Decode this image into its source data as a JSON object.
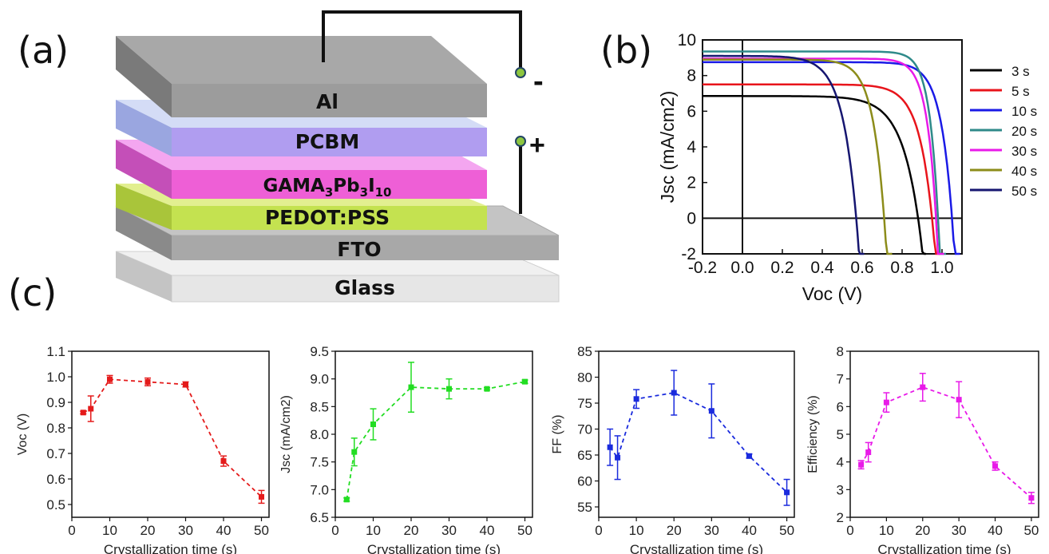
{
  "panels": {
    "a": "(a)",
    "b": "(b)",
    "c": "(c)"
  },
  "device": {
    "layers": [
      "Al",
      "PCBM",
      "GAMA3Pb3I10",
      "PEDOT:PSS",
      "FTO",
      "Glass"
    ],
    "absorber": {
      "base": "GAMA",
      "s1": "3",
      "mid": "Pb",
      "s2": "3",
      "mid2": "I",
      "s3": "10"
    },
    "terminals": {
      "negative": "-",
      "positive": "+"
    }
  },
  "chart_data": [
    {
      "type": "line",
      "id": "b",
      "xlabel": "Voc (V)",
      "ylabel": "Jsc (mA/cm2)",
      "xlim": [
        -0.2,
        1.1
      ],
      "ylim": [
        -2,
        10
      ],
      "xticks": [
        "-0.2",
        "0.0",
        "0.2",
        "0.4",
        "0.6",
        "0.8",
        "1.0"
      ],
      "yticks": [
        "-2",
        "0",
        "2",
        "4",
        "6",
        "8",
        "10"
      ],
      "legend_position": "right",
      "series": [
        {
          "name": "3 s",
          "color": "#000000",
          "jsc": 6.85,
          "voc": 0.88,
          "n": 10
        },
        {
          "name": "5 s",
          "color": "#e8141b",
          "jsc": 7.5,
          "voc": 0.95,
          "n": 14
        },
        {
          "name": "10 s",
          "color": "#1a1ae6",
          "jsc": 8.75,
          "voc": 1.05,
          "n": 18
        },
        {
          "name": "20 s",
          "color": "#2f8a8a",
          "jsc": 9.35,
          "voc": 0.98,
          "n": 22
        },
        {
          "name": "30 s",
          "color": "#e81ae8",
          "jsc": 8.95,
          "voc": 0.97,
          "n": 20
        },
        {
          "name": "40 s",
          "color": "#8c8c1a",
          "jsc": 8.9,
          "voc": 0.71,
          "n": 12
        },
        {
          "name": "50 s",
          "color": "#161670",
          "jsc": 9.1,
          "voc": 0.57,
          "n": 8
        }
      ]
    },
    {
      "type": "line",
      "id": "c1",
      "color": "#e41b1b",
      "xlabel": "Crystallization time (s)",
      "ylabel": "Voc (V)",
      "xlim": [
        0,
        52
      ],
      "ylim": [
        0.45,
        1.1
      ],
      "xticks": [
        "0",
        "10",
        "20",
        "30",
        "40",
        "50"
      ],
      "yticks": [
        "0.5",
        "0.6",
        "0.7",
        "0.8",
        "0.9",
        "1.0",
        "1.1"
      ],
      "x": [
        3,
        5,
        10,
        20,
        30,
        40,
        50
      ],
      "y": [
        0.86,
        0.875,
        0.99,
        0.98,
        0.97,
        0.67,
        0.53
      ],
      "err": [
        0.005,
        0.05,
        0.015,
        0.015,
        0.01,
        0.02,
        0.025
      ]
    },
    {
      "type": "line",
      "id": "c2",
      "color": "#22dd22",
      "xlabel": "Crystallization time (s)",
      "ylabel": "Jsc (mA/cm2)",
      "xlim": [
        0,
        52
      ],
      "ylim": [
        6.5,
        9.5
      ],
      "xticks": [
        "0",
        "10",
        "20",
        "30",
        "40",
        "50"
      ],
      "yticks": [
        "6.5",
        "7.0",
        "7.5",
        "8.0",
        "8.5",
        "9.0",
        "9.5"
      ],
      "x": [
        3,
        5,
        10,
        20,
        30,
        40,
        50
      ],
      "y": [
        6.82,
        7.68,
        8.18,
        8.85,
        8.82,
        8.82,
        8.95
      ],
      "err": [
        0.03,
        0.25,
        0.28,
        0.45,
        0.18,
        0.02,
        0.03
      ]
    },
    {
      "type": "line",
      "id": "c3",
      "color": "#1a2bdd",
      "xlabel": "Crystallization time (s)",
      "ylabel": "FF (%)",
      "xlim": [
        0,
        52
      ],
      "ylim": [
        53,
        85
      ],
      "xticks": [
        "0",
        "10",
        "20",
        "30",
        "40",
        "50"
      ],
      "yticks": [
        "55",
        "60",
        "65",
        "70",
        "75",
        "80",
        "85"
      ],
      "x": [
        3,
        5,
        10,
        20,
        30,
        40,
        50
      ],
      "y": [
        66.5,
        64.5,
        75.8,
        77,
        73.5,
        64.8,
        57.8
      ],
      "err": [
        3.5,
        4.2,
        1.8,
        4.3,
        5.2,
        0.4,
        2.5
      ]
    },
    {
      "type": "line",
      "id": "c4",
      "color": "#e81ae8",
      "xlabel": "Crystallization time (s)",
      "ylabel": "Efficiency (%)",
      "xlim": [
        0,
        52
      ],
      "ylim": [
        2,
        8
      ],
      "xticks": [
        "0",
        "10",
        "20",
        "30",
        "40",
        "50"
      ],
      "yticks": [
        "2",
        "3",
        "4",
        "5",
        "6",
        "7",
        "8"
      ],
      "x": [
        3,
        5,
        10,
        20,
        30,
        40,
        50
      ],
      "y": [
        3.9,
        4.35,
        6.15,
        6.7,
        6.25,
        3.85,
        2.7
      ],
      "err": [
        0.15,
        0.35,
        0.35,
        0.5,
        0.65,
        0.15,
        0.2
      ]
    }
  ]
}
